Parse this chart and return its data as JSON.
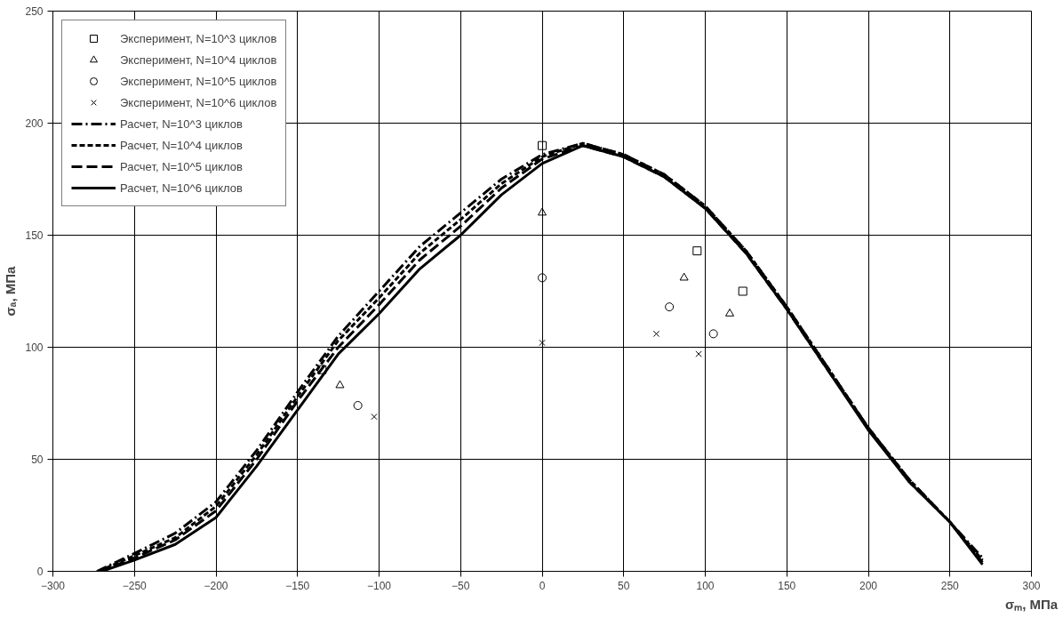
{
  "chart_data": {
    "type": "line",
    "xlabel": "σₘ, МПа",
    "ylabel": "σₐ, МПа",
    "xlim": [
      -300,
      300
    ],
    "xticks": [
      -300,
      -250,
      -200,
      -150,
      -100,
      -50,
      0,
      50,
      100,
      150,
      200,
      250,
      300
    ],
    "ylim": [
      0,
      250
    ],
    "yticks": [
      0,
      50,
      100,
      150,
      200,
      250
    ],
    "grid": true,
    "legend": "top left",
    "series": [
      {
        "name": "Эксперимент, N=10^3 циклов",
        "type": "scatter",
        "marker": "square",
        "color": "#000000",
        "x": [
          -135,
          0,
          95,
          123
        ],
        "values": [
          90,
          190,
          143,
          125
        ]
      },
      {
        "name": "Эксперимент, N=10^4 циклов",
        "type": "scatter",
        "marker": "triangle",
        "color": "#000000",
        "x": [
          -124,
          0,
          87,
          115
        ],
        "values": [
          83,
          160,
          131,
          115
        ]
      },
      {
        "name": "Эксперимент, N=10^5 циклов",
        "type": "scatter",
        "marker": "circle",
        "color": "#000000",
        "x": [
          -113,
          0,
          78,
          105
        ],
        "values": [
          74,
          131,
          118,
          106
        ]
      },
      {
        "name": "Эксперимент, N=10^6 циклов",
        "type": "scatter",
        "marker": "cross",
        "color": "#000000",
        "x": [
          -103,
          0,
          70,
          96
        ],
        "values": [
          69,
          102,
          106,
          97
        ]
      },
      {
        "name": "Расчет, N=10^3 циклов",
        "line_style": "dashdot",
        "color": "#000000",
        "x": [
          -273,
          -250,
          -225,
          -200,
          -175,
          -150,
          -125,
          -100,
          -75,
          -50,
          -25,
          0,
          25,
          50,
          75,
          100,
          125,
          150,
          175,
          200,
          225,
          250,
          270
        ],
        "values": [
          0,
          8,
          17,
          31,
          54,
          80,
          105,
          125,
          145,
          160,
          175,
          186,
          191,
          186,
          177,
          163,
          143,
          118,
          91,
          64,
          41,
          22,
          6
        ]
      },
      {
        "name": "Расчет, N=10^4 циклов",
        "line_style": "dashed",
        "color": "#000000",
        "x": [
          -272,
          -250,
          -225,
          -200,
          -175,
          -150,
          -125,
          -100,
          -75,
          -50,
          -25,
          0,
          25,
          50,
          75,
          100,
          125,
          150,
          175,
          200,
          225,
          250,
          270
        ],
        "values": [
          0,
          7,
          15,
          29,
          52,
          78,
          103,
          122,
          142,
          157,
          173,
          185,
          191,
          186,
          177,
          163,
          143,
          118,
          91,
          64,
          41,
          22,
          5
        ]
      },
      {
        "name": "Расчет, N=10^5 циклов",
        "line_style": "longdash",
        "color": "#000000",
        "x": [
          -271,
          -250,
          -225,
          -200,
          -175,
          -150,
          -125,
          -100,
          -75,
          -50,
          -25,
          0,
          25,
          50,
          75,
          100,
          125,
          150,
          175,
          200,
          225,
          250,
          270
        ],
        "values": [
          0,
          6,
          14,
          27,
          50,
          76,
          100,
          119,
          139,
          154,
          171,
          184,
          190,
          185,
          176,
          162,
          142,
          117,
          90,
          64,
          40,
          22,
          4
        ]
      },
      {
        "name": "Расчет, N=10^6 циклов",
        "line_style": "solid",
        "color": "#000000",
        "x": [
          -270,
          -250,
          -225,
          -200,
          -175,
          -150,
          -125,
          -100,
          -75,
          -50,
          -25,
          0,
          25,
          50,
          75,
          100,
          125,
          150,
          175,
          200,
          225,
          250,
          270
        ],
        "values": [
          0,
          5,
          12,
          24,
          47,
          72,
          97,
          115,
          135,
          150,
          168,
          182,
          190,
          185,
          176,
          162,
          142,
          117,
          90,
          63,
          40,
          22,
          3
        ]
      }
    ]
  }
}
